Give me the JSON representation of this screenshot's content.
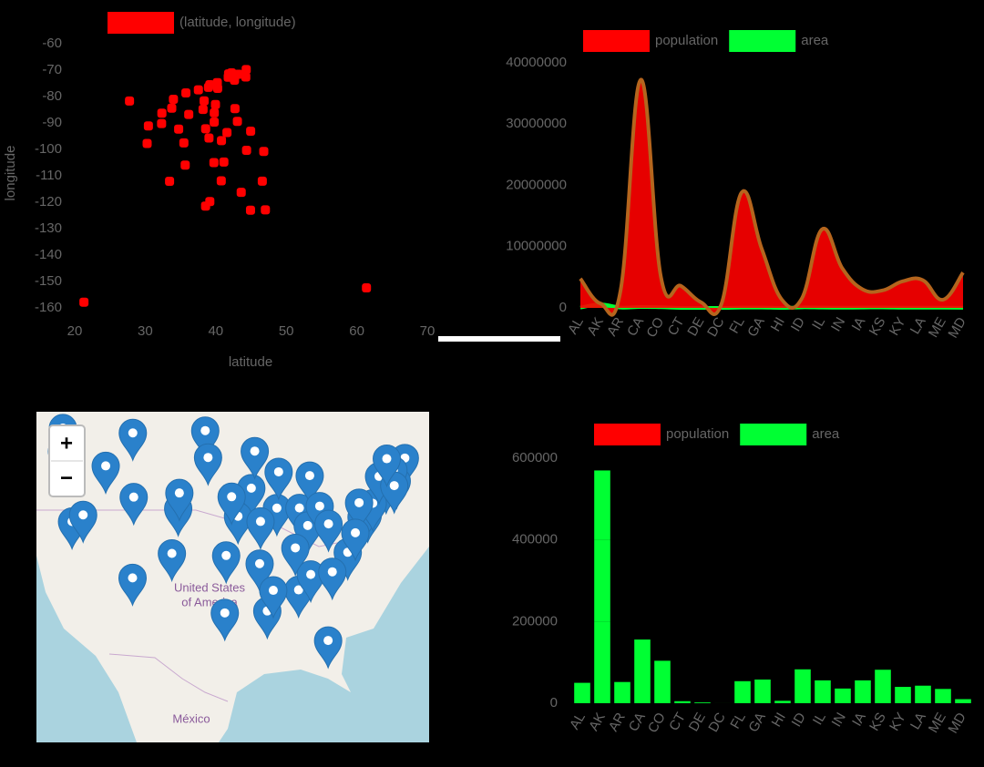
{
  "chart_data": [
    {
      "type": "scatter",
      "xlabel": "latitude",
      "ylabel": "longitude",
      "x": [
        32.36,
        61.37,
        33.45,
        34.74,
        38.56,
        39.74,
        41.77,
        39.16,
        27.77,
        33.76,
        21.31,
        43.61,
        39.78,
        39.79,
        41.59,
        39.04,
        38.2,
        30.45,
        44.32,
        38.97,
        42.24,
        42.73,
        44.95,
        32.32,
        38.57,
        46.6,
        40.81,
        39.16,
        43.22,
        40.22,
        35.67,
        42.66,
        35.77,
        46.81,
        39.96,
        35.48,
        44.93,
        40.27,
        41.82,
        34.0,
        44.37,
        36.17,
        30.27,
        40.78,
        44.26,
        37.54,
        47.04,
        38.35,
        43.07,
        41.15
      ],
      "series": [
        {
          "name": "(latitude, longitude)",
          "color": "#ff0000",
          "values": [
            -86.28,
            -152.4,
            -112.07,
            -92.33,
            -121.47,
            -104.98,
            -72.68,
            -75.53,
            -81.69,
            -84.39,
            -157.83,
            -116.24,
            -89.65,
            -86.15,
            -93.62,
            -95.69,
            -84.86,
            -91.14,
            -69.77,
            -76.5,
            -71.03,
            -84.55,
            -93.09,
            -90.21,
            -92.19,
            -112.03,
            -96.68,
            -119.75,
            -71.55,
            -74.76,
            -105.96,
            -73.78,
            -78.64,
            -100.78,
            -83.0,
            -97.53,
            -123.03,
            -76.88,
            -71.42,
            -81.04,
            -100.34,
            -86.78,
            -97.74,
            -111.89,
            -72.58,
            -77.46,
            -122.89,
            -81.63,
            -89.38,
            -104.8
          ]
        }
      ],
      "xlim": [
        20,
        70
      ],
      "xticks": [
        20,
        30,
        40,
        50,
        60,
        70
      ],
      "ylim": [
        -160,
        -60
      ],
      "yticks": [
        -60,
        -70,
        -80,
        -90,
        -100,
        -110,
        -120,
        -130,
        -140,
        -150,
        -160
      ]
    },
    {
      "type": "line",
      "categories": [
        "AL",
        "AK",
        "AR",
        "CA",
        "CO",
        "CT",
        "DE",
        "DC",
        "FL",
        "GA",
        "HI",
        "ID",
        "IL",
        "IN",
        "IA",
        "KS",
        "KY",
        "LA",
        "ME",
        "MD"
      ],
      "series": [
        {
          "name": "population",
          "color": "#ff0000",
          "values": [
            4780000,
            710000,
            2920000,
            37250000,
            5030000,
            3570000,
            900000,
            600000,
            18800000,
            9690000,
            1360000,
            1570000,
            12830000,
            6480000,
            3050000,
            2850000,
            4340000,
            4530000,
            1330000,
            5770000
          ]
        },
        {
          "name": "area",
          "color": "#00ff33",
          "values": [
            50000,
            570000,
            52000,
            156000,
            104000,
            5000,
            2000,
            61,
            54000,
            58000,
            6000,
            83000,
            56000,
            36000,
            56000,
            82000,
            40000,
            43000,
            35000,
            10000
          ]
        }
      ],
      "ylim": [
        0,
        40000000
      ],
      "yticks": [
        0,
        10000000,
        20000000,
        30000000,
        40000000
      ]
    },
    {
      "type": "bar",
      "categories": [
        "AL",
        "AK",
        "AR",
        "CA",
        "CO",
        "CT",
        "DE",
        "DC",
        "FL",
        "GA",
        "HI",
        "ID",
        "IL",
        "IN",
        "IA",
        "KS",
        "KY",
        "LA",
        "ME",
        "MD"
      ],
      "series": [
        {
          "name": "population",
          "color": "#ff0000",
          "values": [
            null,
            null,
            null,
            null,
            null,
            null,
            null,
            null,
            null,
            null,
            null,
            null,
            null,
            null,
            null,
            null,
            null,
            null,
            null,
            null
          ]
        },
        {
          "name": "area",
          "color": "#00ff33",
          "values": [
            50000,
            570000,
            52000,
            156000,
            104000,
            5000,
            2000,
            61,
            54000,
            58000,
            6000,
            83000,
            56000,
            36000,
            56000,
            82000,
            40000,
            43000,
            35000,
            10000
          ]
        }
      ],
      "ylim": [
        0,
        600000
      ],
      "yticks": [
        0,
        200000,
        400000,
        600000
      ],
      "grid": true
    }
  ],
  "map": {
    "zoom_in": "+",
    "zoom_out": "−",
    "labels": [
      "United States",
      "of America",
      "México"
    ]
  }
}
